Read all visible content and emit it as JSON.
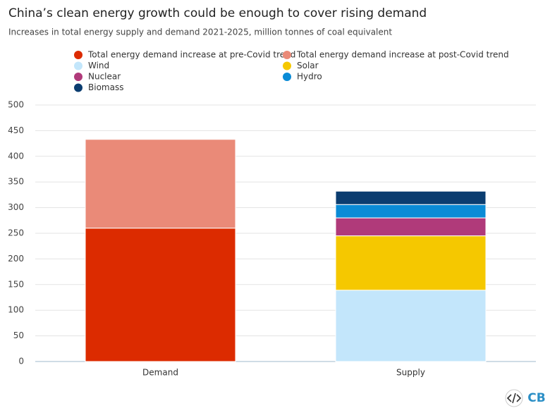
{
  "chart_data": {
    "type": "stacked_bar",
    "title": "China’s clean energy growth could be enough to cover rising demand",
    "subtitle": "Increases in total energy supply and demand 2021-2025, million tonnes of coal equivalent",
    "categories": [
      "Demand",
      "Supply"
    ],
    "series": [
      {
        "name": "Total energy demand increase at pre-Covid trend",
        "color": "#dc2b00",
        "values": [
          260,
          null
        ]
      },
      {
        "name": "Total energy demand increase at post-Covid trend",
        "color": "#ea8a78",
        "values": [
          173,
          null
        ]
      },
      {
        "name": "Wind",
        "color": "#c3e6fb",
        "values": [
          null,
          139
        ]
      },
      {
        "name": "Solar",
        "color": "#f5c800",
        "values": [
          null,
          106
        ]
      },
      {
        "name": "Nuclear",
        "color": "#b03a7a",
        "values": [
          null,
          35
        ]
      },
      {
        "name": "Hydro",
        "color": "#0a8bd6",
        "values": [
          null,
          26
        ]
      },
      {
        "name": "Biomass",
        "color": "#0b3d70",
        "values": [
          null,
          26
        ]
      }
    ],
    "ylim": [
      0,
      500
    ],
    "yticks": [
      0,
      50,
      100,
      150,
      200,
      250,
      300,
      350,
      400,
      450,
      500
    ],
    "grid": true,
    "logo": "CB"
  }
}
